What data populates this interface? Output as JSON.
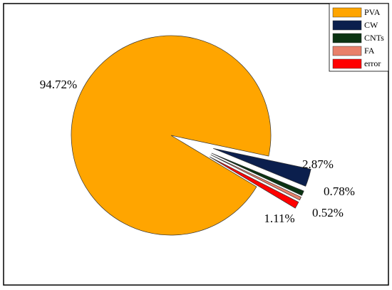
{
  "chart_data": {
    "type": "pie",
    "categories": [
      "PVA",
      "CW",
      "CNTs",
      "FA",
      "error"
    ],
    "values": [
      94.72,
      2.87,
      0.78,
      0.52,
      1.11
    ],
    "value_labels": [
      "94.72%",
      "2.87%",
      "0.78%",
      "0.52%",
      "1.11%"
    ],
    "colors": [
      "#FFA500",
      "#0B1F4D",
      "#0A3312",
      "#E8806A",
      "#FF0000"
    ],
    "legend": "top-right"
  }
}
